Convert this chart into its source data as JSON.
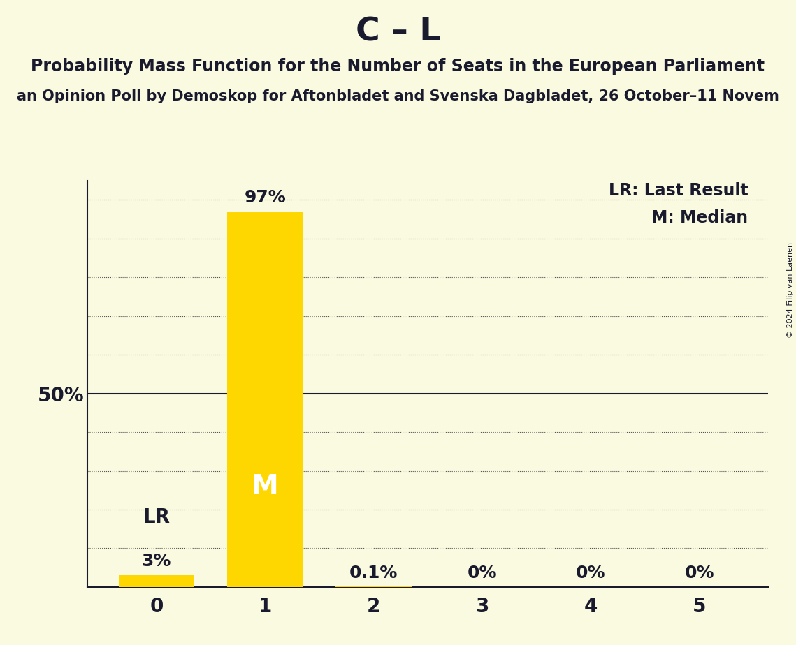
{
  "title": "C – L",
  "subtitle": "Probability Mass Function for the Number of Seats in the European Parliament",
  "source_line": "an Opinion Poll by Demoskop for Aftonbladet and Svenska Dagbladet, 26 October–11 Novem",
  "copyright": "© 2024 Filip van Laenen",
  "categories": [
    0,
    1,
    2,
    3,
    4,
    5
  ],
  "values": [
    3.0,
    97.0,
    0.1,
    0.0,
    0.0,
    0.0
  ],
  "bar_color": "#FFD700",
  "bar_labels": [
    "3%",
    "97%",
    "0.1%",
    "0%",
    "0%",
    "0%"
  ],
  "median_bar": 1,
  "last_result_bar": 0,
  "median_label": "M",
  "lr_label": "LR",
  "y50_label": "50%",
  "legend_lr": "LR: Last Result",
  "legend_m": "M: Median",
  "background_color": "#FAFAE0",
  "text_color": "#1a1a2e",
  "grid_color": "#555555",
  "ylim": [
    0,
    105
  ],
  "title_fontsize": 34,
  "subtitle_fontsize": 17,
  "source_fontsize": 15,
  "bar_label_fontsize": 18,
  "axis_label_fontsize": 20,
  "legend_fontsize": 17,
  "median_inside_fontsize": 28,
  "lr_fontsize": 20
}
